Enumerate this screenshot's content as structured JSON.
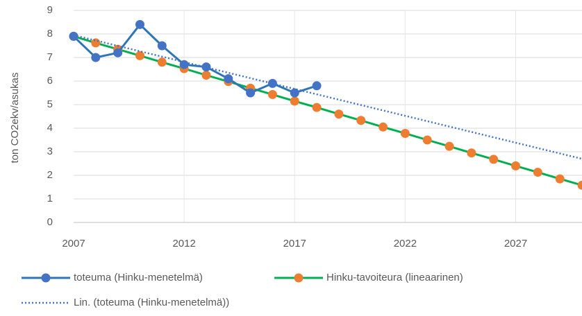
{
  "chart_data": {
    "type": "line",
    "ylabel": "ton CO2ekv/asukas",
    "xlim": [
      2007,
      2030
    ],
    "xticks": [
      2007,
      2012,
      2017,
      2022,
      2027
    ],
    "ylim": [
      0,
      9
    ],
    "yticks": [
      0,
      1,
      2,
      3,
      4,
      5,
      6,
      7,
      8,
      9
    ],
    "grid": true,
    "legend": "bottom",
    "series": [
      {
        "name": "Hinku-tavoiteura (lineaarinen)",
        "color": "#00B050",
        "marker_color": "#ED7D31",
        "marker": true,
        "dotted": false,
        "x": [
          2007,
          2008,
          2009,
          2010,
          2011,
          2012,
          2013,
          2014,
          2015,
          2016,
          2017,
          2018,
          2019,
          2020,
          2021,
          2022,
          2023,
          2024,
          2025,
          2026,
          2027,
          2028,
          2029,
          2030
        ],
        "values": [
          7.9,
          7.62,
          7.35,
          7.08,
          6.8,
          6.53,
          6.25,
          5.98,
          5.7,
          5.43,
          5.15,
          4.88,
          4.6,
          4.33,
          4.05,
          3.78,
          3.5,
          3.23,
          2.95,
          2.68,
          2.4,
          2.13,
          1.85,
          1.58
        ]
      },
      {
        "name": "toteuma (Hinku-menetelmä)",
        "color": "#2E75B6",
        "marker_color": "#4472C4",
        "marker": true,
        "dotted": false,
        "x": [
          2007,
          2008,
          2009,
          2010,
          2011,
          2012,
          2013,
          2014,
          2015,
          2016,
          2017,
          2018
        ],
        "values": [
          7.9,
          7.0,
          7.2,
          8.4,
          7.5,
          6.7,
          6.6,
          6.1,
          5.5,
          5.9,
          5.5,
          5.8
        ]
      },
      {
        "name": "Lin. (toteuma (Hinku-menetelmä))",
        "color": "#4472C4",
        "marker_color": "#4472C4",
        "marker": false,
        "dotted": true,
        "x": [
          2007,
          2030
        ],
        "values": [
          7.95,
          2.7
        ]
      }
    ]
  }
}
